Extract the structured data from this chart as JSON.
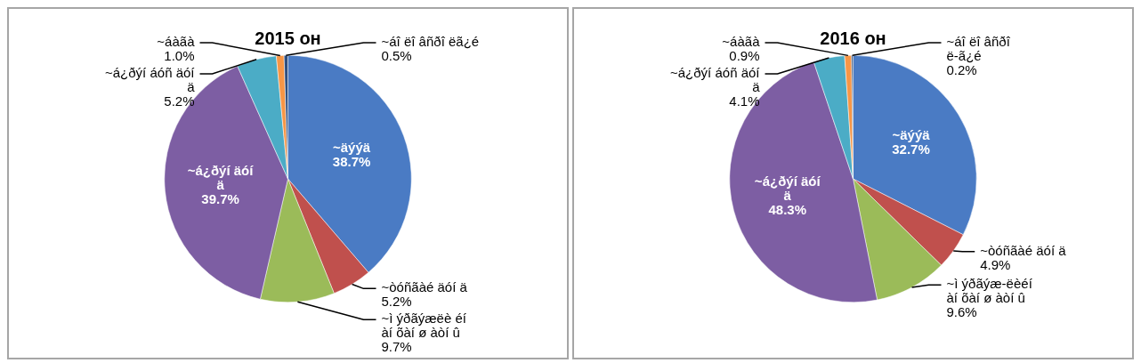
{
  "chart_data": [
    {
      "type": "pie",
      "title": "2015 он",
      "categories": [
        "~äýýä",
        "~òóñãàé äóí ä",
        "~ì ýðãýæëè éí àí õàí ø àòí û",
        "~á¿ðýí äóí ä",
        "~á¿ðýí áóñ äóí ä",
        "~áàãà",
        "~áî ëî âñðî ëã¿é"
      ],
      "values": [
        38.7,
        5.2,
        9.7,
        39.7,
        5.2,
        1.0,
        0.5
      ],
      "value_labels": [
        "38.7%",
        "5.2%",
        "9.7%",
        "39.7%",
        "5.2%",
        "1.0%",
        "0.5%"
      ],
      "colors": [
        "#4a7bc4",
        "#c0504d",
        "#9bbb59",
        "#7d5ea3",
        "#4bacc6",
        "#f79646",
        "#2f4f7f"
      ],
      "data_labels": true
    },
    {
      "type": "pie",
      "title": "2016 он",
      "categories": [
        "~äýýä",
        "~òóñãàé äóí ä",
        "~ì ýðãýæ-ëèéí àí õàí ø àòí û",
        "~á¿ðýí äóí ä",
        "~á¿ðýí áóñ äóí ä",
        "~áàãà",
        "~áî ëî âñðî ë-ã¿é"
      ],
      "values": [
        32.7,
        4.9,
        9.6,
        48.3,
        4.1,
        0.9,
        0.2
      ],
      "value_labels": [
        "32.7%",
        "4.9%",
        "9.6%",
        "48.3%",
        "4.1%",
        "0.9%",
        "0.2%"
      ],
      "colors": [
        "#4a7bc4",
        "#c0504d",
        "#9bbb59",
        "#7d5ea3",
        "#4bacc6",
        "#f79646",
        "#2f4f7f"
      ],
      "data_labels": true
    }
  ]
}
